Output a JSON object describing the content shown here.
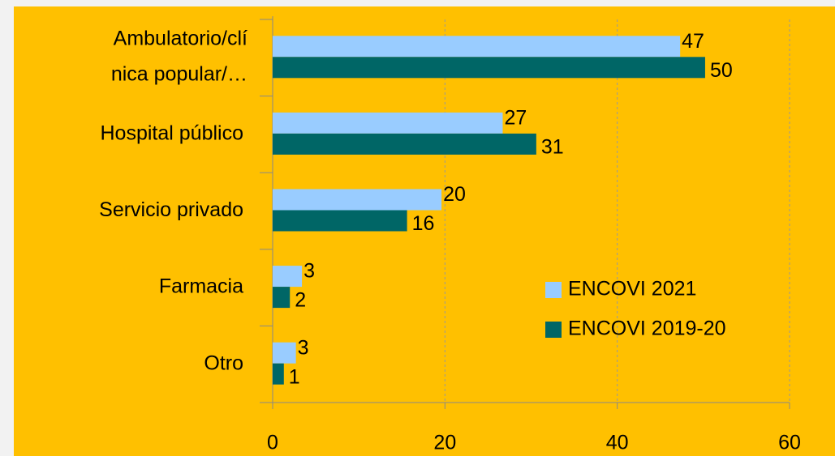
{
  "chart_data": {
    "type": "bar",
    "orientation": "horizontal",
    "categories": [
      "Ambulatorio/clínica popular/…",
      "Hospital público",
      "Servicio privado",
      "Farmacia",
      "Otro"
    ],
    "series": [
      {
        "name": "ENCOVI 2021",
        "color": "#99ccff",
        "values": [
          47.3,
          26.7,
          19.6,
          3.4,
          2.7
        ],
        "value_labels": [
          "47",
          "27",
          "20",
          "3",
          "3"
        ]
      },
      {
        "name": "ENCOVI 2019-20",
        "color": "#006666",
        "values": [
          50.2,
          30.6,
          15.6,
          2.0,
          1.3
        ],
        "value_labels": [
          "50",
          "31",
          "16",
          "2",
          "1"
        ]
      }
    ],
    "xlim": [
      0,
      60
    ],
    "xticks": [
      0,
      20,
      40,
      60
    ],
    "grid": true,
    "legend": "lower right"
  }
}
